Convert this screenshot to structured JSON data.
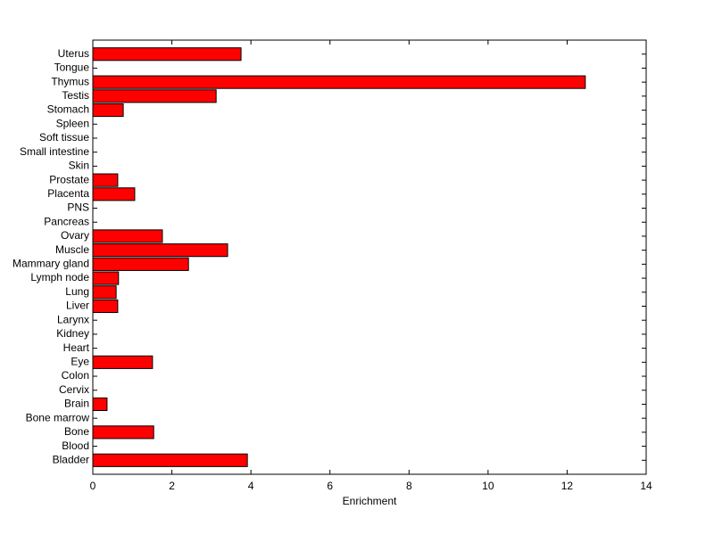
{
  "chart_data": {
    "type": "barh",
    "xlabel": "Enrichment",
    "categories": [
      "Bladder",
      "Blood",
      "Bone",
      "Bone marrow",
      "Brain",
      "Cervix",
      "Colon",
      "Eye",
      "Heart",
      "Kidney",
      "Larynx",
      "Liver",
      "Lung",
      "Lymph node",
      "Mammary gland",
      "Muscle",
      "Ovary",
      "Pancreas",
      "PNS",
      "Placenta",
      "Prostate",
      "Skin",
      "Small intestine",
      "Soft tissue",
      "Spleen",
      "Stomach",
      "Testis",
      "Thymus",
      "Tongue",
      "Uterus"
    ],
    "values": [
      3.91,
      0,
      1.54,
      0,
      0.36,
      0,
      0,
      1.51,
      0,
      0,
      0,
      0.63,
      0.59,
      0.65,
      2.42,
      3.41,
      1.76,
      0,
      0,
      1.06,
      0.63,
      0,
      0,
      0,
      0,
      0.77,
      3.12,
      12.46,
      0,
      3.75
    ],
    "color": "#ff0000",
    "xlim": [
      0,
      14
    ],
    "xticks": [
      0,
      2,
      4,
      6,
      8,
      10,
      12,
      14
    ]
  }
}
